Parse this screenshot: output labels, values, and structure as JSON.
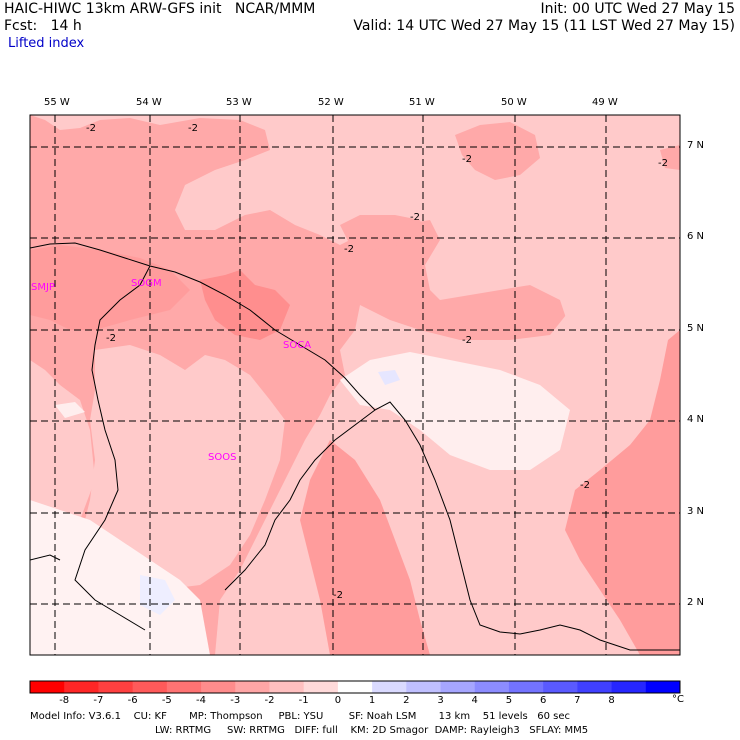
{
  "header": {
    "line1_left": "HAIC-HIWC 13km ARW-GFS init   NCAR/MMM",
    "line1_right": "Init: 00 UTC Wed 27 May 15",
    "line2_left": "Fcst:   14 h",
    "line2_right": "Valid: 14 UTC Wed 27 May 15 (11 LST Wed 27 May 15)",
    "field_name": "Lifted index"
  },
  "map": {
    "lon_labels": [
      "55 W",
      "54 W",
      "53 W",
      "52 W",
      "51 W",
      "50 W",
      "49 W"
    ],
    "lat_labels": [
      "7 N",
      "6 N",
      "5 N",
      "4 N",
      "3 N",
      "2 N"
    ],
    "contour_labels": [
      "-2",
      "-2",
      "-2",
      "-2",
      "-2",
      "-2",
      "-2",
      "-2",
      "-2",
      "-2"
    ],
    "stations": [
      "SMJP",
      "SOGM",
      "SOCA",
      "SOOS"
    ],
    "station_color": "#ff00ff"
  },
  "colorbar": {
    "ticks": [
      "-8",
      "-7",
      "-6",
      "-5",
      "-4",
      "-3",
      "-2",
      "-1",
      "0",
      "1",
      "2",
      "3",
      "4",
      "5",
      "6",
      "7",
      "8"
    ],
    "unit": "°C",
    "colors": [
      "#ff0000",
      "#ff2626",
      "#ff4040",
      "#ff5a5a",
      "#ff7373",
      "#ff8c8c",
      "#ffa6a6",
      "#ffc0c0",
      "#ffdada",
      "#ffffff",
      "#dadaff",
      "#c0c0ff",
      "#a6a6ff",
      "#8c8cff",
      "#7373ff",
      "#5a5aff",
      "#4040ff",
      "#2626ff",
      "#0000ff"
    ]
  },
  "footer": {
    "line1": "Model Info: V3.6.1    CU: KF       MP: Thompson     PBL: YSU        SF: Noah LSM       13 km    51 levels   60 sec",
    "line2": "LW: RRTMG     SW: RRTMG   DIFF: full    KM: 2D Smagor  DAMP: Rayleigh3   SFLAY: MM5"
  }
}
